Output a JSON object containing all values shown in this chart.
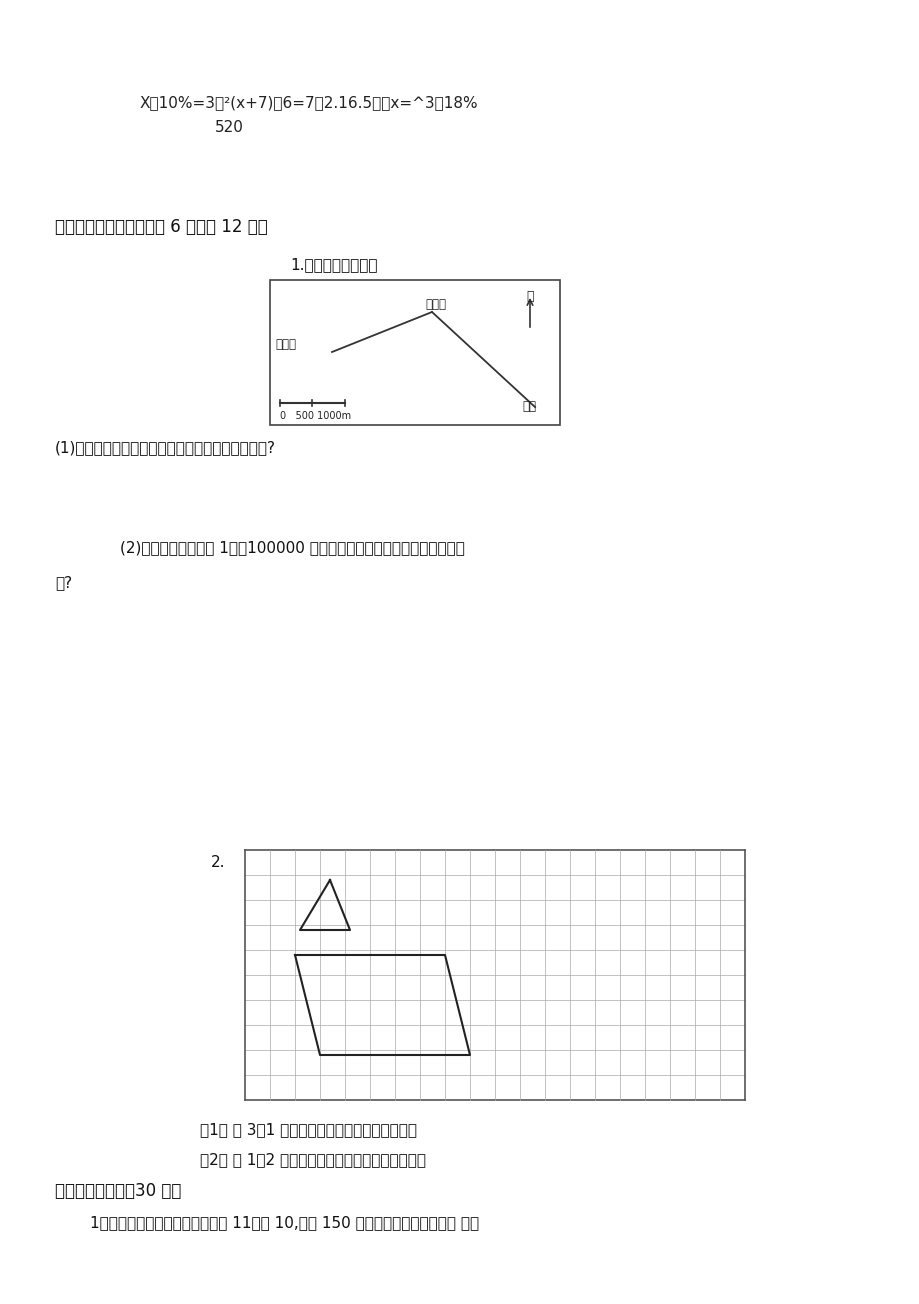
{
  "bg_color": "#ffffff",
  "line1_text": "X：10%=3：²(x+7)：6=7：2.16.5：　x=^3：18%",
  "line2_text": "520",
  "section5_title": "五、动手操作。（每小题 6 分，共 12 分）",
  "sub1_title": "1.量一量，算一算。",
  "map_label_xiaoming": "小明家",
  "map_label_bei": "北",
  "map_label_huochezhan": "火车站",
  "map_label_chaoshi": "超市",
  "map_scale_text": "0   500 1000m",
  "q1_text": "(1)小明家到超市和到火车站的实际距离分别是多少?",
  "q2_text": "(2)在另一幅比例尺为 1：　100000 的地图上，小明家与火车站的距离是多",
  "q2_text2": "少?",
  "grid_label": "2.",
  "grid_instruction1": "（1） 按 3：1 的比例画出三角形放大后的图形。",
  "grid_instruction2": "（2） 按 1：2 的比例画出平行四边形缩小后的图形",
  "section6_title": "六、活学活用。（30 分）",
  "s6q1_text": "1．相同质量的冰和水的体积比是 11：　 10,现有 150 升水，结成冰后的体积是 多少"
}
